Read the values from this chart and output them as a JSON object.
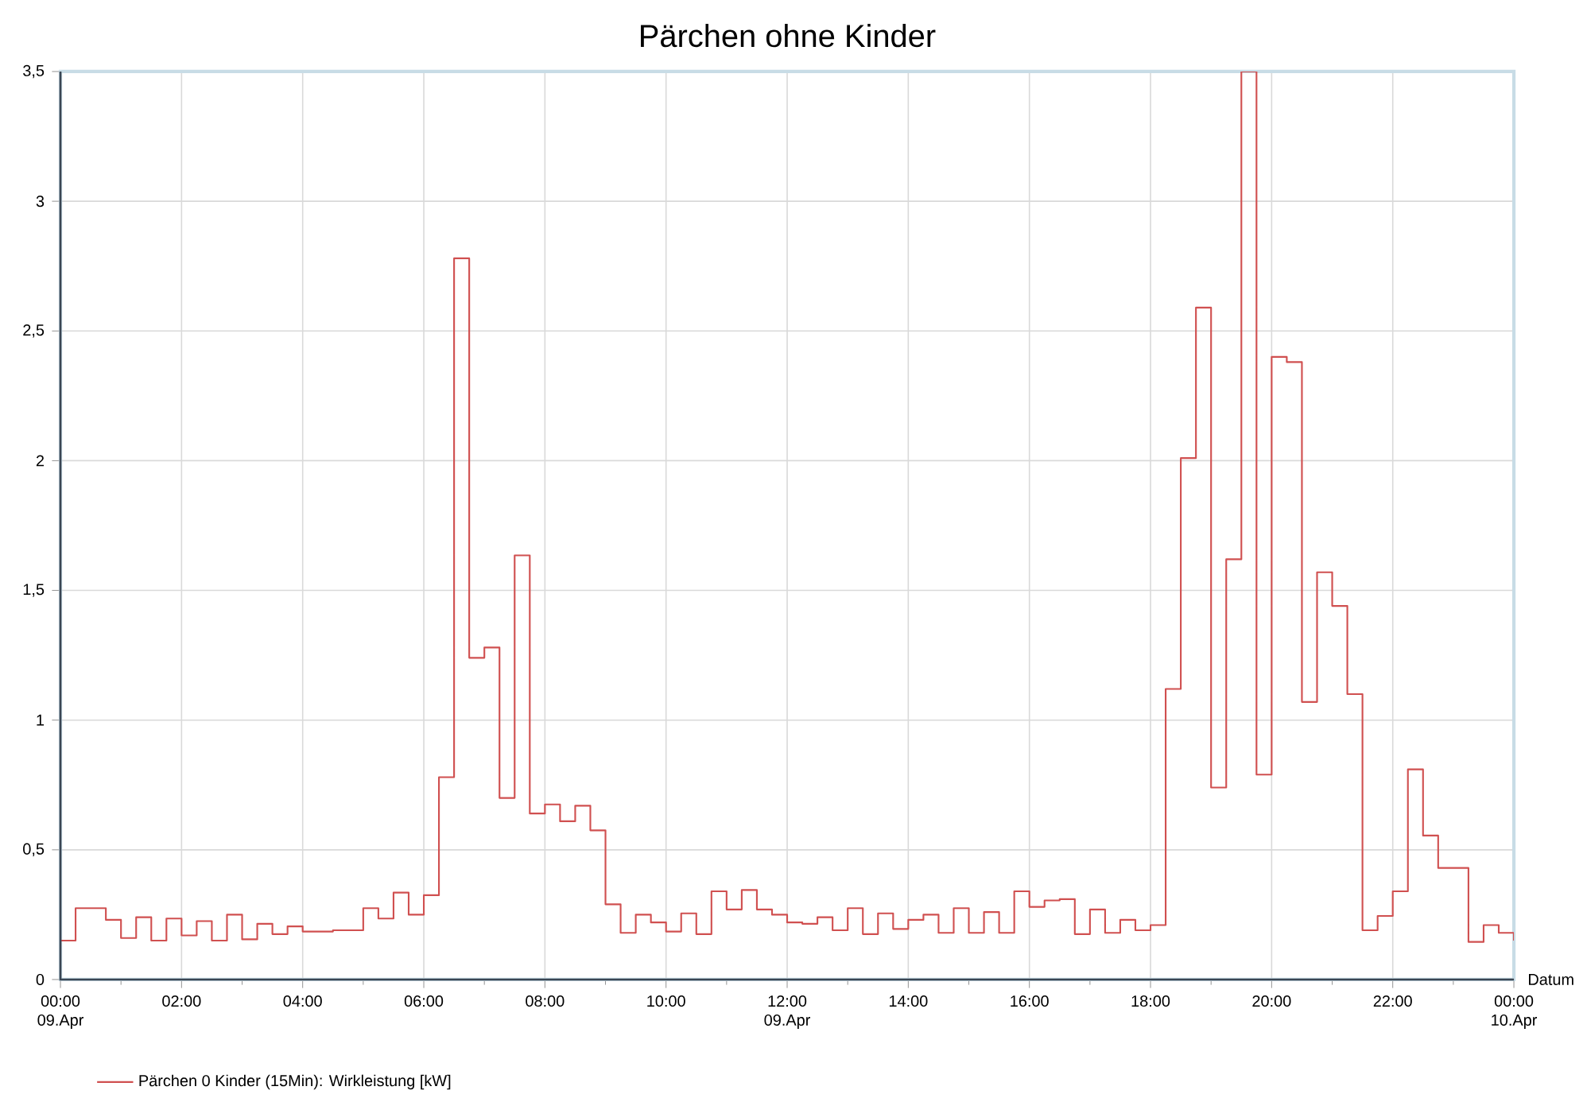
{
  "chart_data": {
    "type": "step",
    "title": "Pärchen ohne Kinder",
    "xlabel": "Datum",
    "x": [
      0,
      0.25,
      0.5,
      0.75,
      1,
      1.25,
      1.5,
      1.75,
      2,
      2.25,
      2.5,
      2.75,
      3,
      3.25,
      3.5,
      3.75,
      4,
      4.25,
      4.5,
      4.75,
      5,
      5.25,
      5.5,
      5.75,
      6,
      6.25,
      6.5,
      6.75,
      7,
      7.25,
      7.5,
      7.75,
      8,
      8.25,
      8.5,
      8.75,
      9,
      9.25,
      9.5,
      9.75,
      10,
      10.25,
      10.5,
      10.75,
      11,
      11.25,
      11.5,
      11.75,
      12,
      12.25,
      12.5,
      12.75,
      13,
      13.25,
      13.5,
      13.75,
      14,
      14.25,
      14.5,
      14.75,
      15,
      15.25,
      15.5,
      15.75,
      16,
      16.25,
      16.5,
      16.75,
      17,
      17.25,
      17.5,
      17.75,
      18,
      18.25,
      18.5,
      18.75,
      19,
      19.25,
      19.5,
      19.75,
      20,
      20.25,
      20.5,
      20.75,
      21,
      21.25,
      21.5,
      21.75,
      22,
      22.25,
      22.5,
      22.75,
      23,
      23.25,
      23.5,
      23.75,
      24
    ],
    "series": [
      {
        "name": "Pärchen 0 Kinder (15Min): Wirkleistung [kW]",
        "color": "#d05050",
        "values": [
          0.15,
          0.275,
          0.275,
          0.23,
          0.16,
          0.24,
          0.15,
          0.235,
          0.17,
          0.225,
          0.15,
          0.25,
          0.155,
          0.215,
          0.175,
          0.205,
          0.185,
          0.185,
          0.19,
          0.19,
          0.275,
          0.235,
          0.335,
          0.25,
          0.325,
          0.78,
          2.78,
          1.24,
          1.28,
          0.7,
          1.635,
          0.64,
          0.675,
          0.61,
          0.67,
          0.575,
          0.29,
          0.18,
          0.25,
          0.22,
          0.185,
          0.255,
          0.175,
          0.34,
          0.27,
          0.345,
          0.27,
          0.25,
          0.22,
          0.215,
          0.24,
          0.19,
          0.275,
          0.175,
          0.255,
          0.195,
          0.23,
          0.25,
          0.18,
          0.275,
          0.18,
          0.26,
          0.18,
          0.34,
          0.28,
          0.305,
          0.31,
          0.175,
          0.27,
          0.18,
          0.23,
          0.19,
          0.21,
          1.12,
          2.01,
          2.59,
          0.74,
          1.62,
          3.5,
          0.79,
          2.4,
          2.38,
          1.07,
          1.57,
          1.44,
          1.1,
          0.19,
          0.245,
          0.34,
          0.81,
          0.555,
          0.43,
          0.43,
          0.145,
          0.21,
          0.18,
          0.15
        ]
      }
    ],
    "xlim": [
      0,
      24
    ],
    "xticks": [
      {
        "value": 0,
        "label": "00:00 09.Apr"
      },
      {
        "value": 1,
        "label": null
      },
      {
        "value": 2,
        "label": "02:00"
      },
      {
        "value": 3,
        "label": null
      },
      {
        "value": 4,
        "label": "04:00"
      },
      {
        "value": 5,
        "label": null
      },
      {
        "value": 6,
        "label": "06:00"
      },
      {
        "value": 7,
        "label": null
      },
      {
        "value": 8,
        "label": "08:00"
      },
      {
        "value": 9,
        "label": null
      },
      {
        "value": 10,
        "label": "10:00"
      },
      {
        "value": 11,
        "label": null
      },
      {
        "value": 12,
        "label": "12:00 09.Apr"
      },
      {
        "value": 13,
        "label": null
      },
      {
        "value": 14,
        "label": "14:00"
      },
      {
        "value": 15,
        "label": null
      },
      {
        "value": 16,
        "label": "16:00"
      },
      {
        "value": 17,
        "label": null
      },
      {
        "value": 18,
        "label": "18:00"
      },
      {
        "value": 19,
        "label": null
      },
      {
        "value": 20,
        "label": "20:00"
      },
      {
        "value": 21,
        "label": null
      },
      {
        "value": 22,
        "label": "22:00"
      },
      {
        "value": 23,
        "label": null
      },
      {
        "value": 24,
        "label": "00:00 10.Apr"
      }
    ],
    "ylim": [
      0,
      3.5
    ],
    "yticks": [
      0,
      {
        "value": 0.5,
        "label": "0,5"
      },
      1,
      {
        "value": 1.5,
        "label": "1,5"
      },
      2,
      {
        "value": 2.5,
        "label": "2,5"
      },
      3,
      {
        "value": 3.5,
        "label": "3,5"
      }
    ],
    "grid": true,
    "legend": "bottom left",
    "marker": "none",
    "line_style": "solid"
  }
}
